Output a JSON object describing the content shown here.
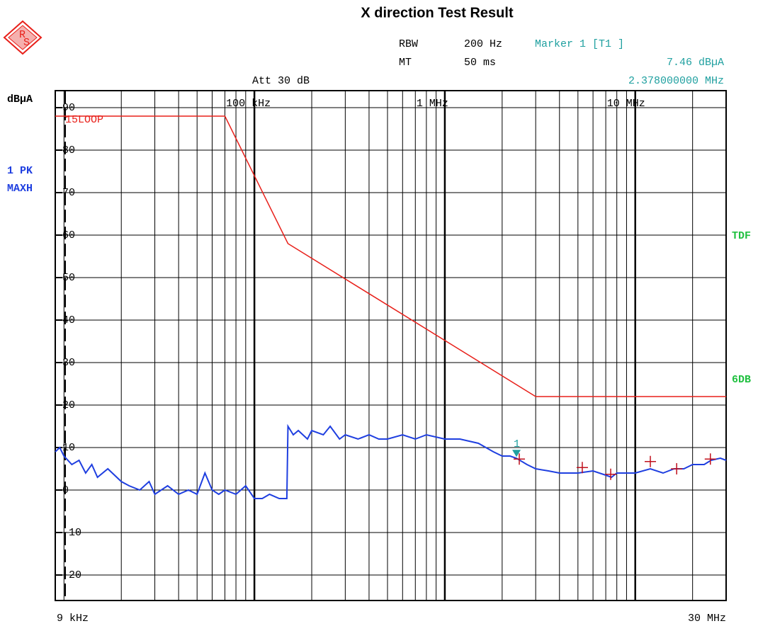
{
  "chart_data": {
    "type": "line",
    "title": "X direction Test Result",
    "logo": [
      "R",
      "S"
    ],
    "settings": [
      {
        "name": "RBW",
        "value": "200 Hz"
      },
      {
        "name": "MT",
        "value": "50 ms"
      }
    ],
    "attenuation": "Att 30 dB",
    "y_unit": "dBµA",
    "trace_labels": [
      "1 PK",
      "MAXH"
    ],
    "side_labels": [
      "TDF",
      "6DB"
    ],
    "marker": {
      "name": "Marker 1 [T1 ]",
      "id": "1",
      "x": 2378000,
      "value": 7.46,
      "value_label": "7.46 dBµA",
      "x_label": "2.378000000 MHz"
    },
    "x_start_label": "9 kHz",
    "x_stop_label": "30 MHz",
    "xscale": "log",
    "xlim": [
      9000,
      30000000
    ],
    "ylim": [
      -26,
      94
    ],
    "xticks": [
      {
        "value": 100000,
        "label": "100 kHz"
      },
      {
        "value": 1000000,
        "label": "1 MHz"
      },
      {
        "value": 10000000,
        "label": "10 MHz"
      }
    ],
    "xminor": [
      10000,
      20000,
      30000,
      40000,
      50000,
      60000,
      70000,
      80000,
      90000,
      200000,
      300000,
      400000,
      500000,
      600000,
      700000,
      800000,
      900000,
      2000000,
      3000000,
      4000000,
      5000000,
      6000000,
      7000000,
      8000000,
      9000000,
      20000000
    ],
    "yticks": [
      -20,
      -10,
      0,
      10,
      20,
      30,
      40,
      50,
      60,
      70,
      80,
      90
    ],
    "grid": true,
    "limit": {
      "name": "15LOOP",
      "color": "#e8201a",
      "x": [
        9000,
        70000,
        150000,
        3000000,
        30000000
      ],
      "values": [
        88,
        88,
        58,
        22,
        22
      ]
    },
    "series": [
      {
        "name": "1 PK MAXH",
        "color": "#1f3fe0",
        "x": [
          9000,
          9500,
          10000,
          11000,
          12000,
          13000,
          14000,
          15000,
          17000,
          20000,
          22000,
          25000,
          28000,
          30000,
          35000,
          40000,
          45000,
          50000,
          55000,
          60000,
          65000,
          70000,
          80000,
          90000,
          100000,
          110000,
          120000,
          135000,
          148000,
          150000,
          160000,
          170000,
          190000,
          200000,
          230000,
          250000,
          280000,
          300000,
          350000,
          400000,
          450000,
          500000,
          600000,
          700000,
          800000,
          1000000,
          1200000,
          1500000,
          1800000,
          2000000,
          2200000,
          2378000,
          2700000,
          3000000,
          3500000,
          4000000,
          5000000,
          6000000,
          7000000,
          7500000,
          8000000,
          10000000,
          12000000,
          14000000,
          16000000,
          18000000,
          20000000,
          23000000,
          25000000,
          28000000,
          30000000
        ],
        "values": [
          9,
          10,
          8,
          6,
          7,
          4,
          6,
          3,
          5,
          2,
          1,
          0,
          2,
          -1,
          1,
          -1,
          0,
          -1,
          4,
          0,
          -1,
          0,
          -1,
          1,
          -2,
          -2,
          -1,
          -2,
          -2,
          15,
          13,
          14,
          12,
          14,
          13,
          15,
          12,
          13,
          12,
          13,
          12,
          12,
          13,
          12,
          13,
          12,
          12,
          11,
          9,
          8,
          8,
          7.46,
          6,
          5,
          4.5,
          4,
          4,
          4.5,
          3.5,
          3,
          4,
          4,
          5,
          4,
          5,
          5,
          6,
          6,
          7,
          7.5,
          7
        ]
      },
      {
        "name": "peaks",
        "color": "#c0101c",
        "x": [
          2460000,
          5270000,
          7430000,
          12000000,
          16500000,
          24800000
        ],
        "values": [
          7.3,
          5.3,
          3.7,
          6.7,
          5,
          7.3
        ]
      }
    ]
  }
}
